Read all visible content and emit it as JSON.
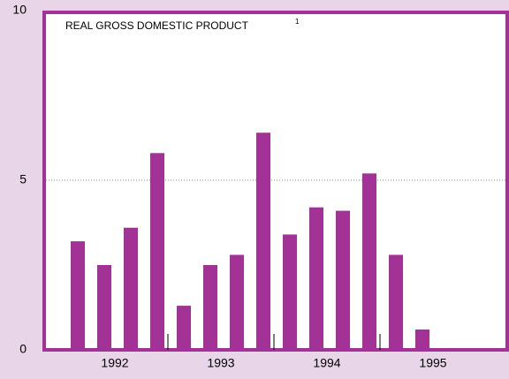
{
  "chart_data": {
    "type": "bar",
    "title": "REAL GROSS DOMESTIC PRODUCT",
    "title_note": "1",
    "categories": [
      null,
      null,
      null,
      null,
      null,
      null,
      null,
      null,
      null,
      null,
      null,
      null,
      null,
      null,
      null,
      null
    ],
    "groups": [
      "1992",
      "1993",
      "1994",
      "1995"
    ],
    "values": [
      3.2,
      2.5,
      3.6,
      5.8,
      1.3,
      2.5,
      2.8,
      6.4,
      3.4,
      4.2,
      4.1,
      5.2,
      2.8,
      0.6,
      null,
      null
    ],
    "color": "#a23295",
    "ylim": [
      0,
      10
    ],
    "yticks": [
      0,
      5,
      10
    ],
    "grid": true
  }
}
